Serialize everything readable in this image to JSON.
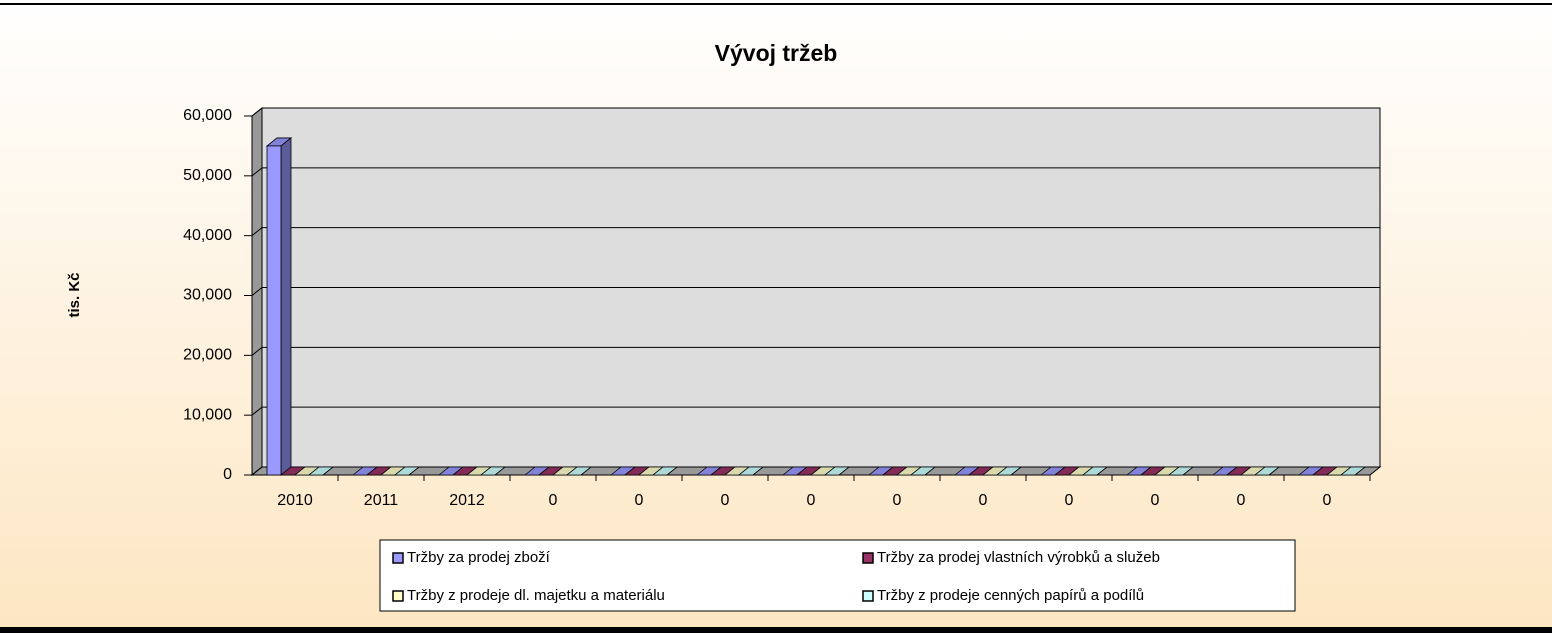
{
  "chart_data": {
    "type": "bar3d",
    "title": "Vývoj tržeb",
    "y_label": "tis. Kč",
    "categories": [
      "2010",
      "2011",
      "2012",
      "0",
      "0",
      "0",
      "0",
      "0",
      "0",
      "0",
      "0",
      "0",
      "0"
    ],
    "series": [
      {
        "name": "Tržby za prodej zboží",
        "color": "#9999ff",
        "values": [
          55000,
          0,
          0,
          0,
          0,
          0,
          0,
          0,
          0,
          0,
          0,
          0,
          0
        ]
      },
      {
        "name": "Tržby za prodej vlastních výrobků a služeb",
        "color": "#993366",
        "values": [
          0,
          0,
          0,
          0,
          0,
          0,
          0,
          0,
          0,
          0,
          0,
          0,
          0
        ]
      },
      {
        "name": "Tržby z prodeje dl. majetku a materiálu",
        "color": "#ffffcc",
        "values": [
          0,
          0,
          0,
          0,
          0,
          0,
          0,
          0,
          0,
          0,
          0,
          0,
          0
        ]
      },
      {
        "name": "Tržby z prodeje cenných papírů a podílů",
        "color": "#ccffff",
        "values": [
          0,
          0,
          0,
          0,
          0,
          0,
          0,
          0,
          0,
          0,
          0,
          0,
          0
        ]
      }
    ],
    "ylim": [
      0,
      60000
    ],
    "yticks": [
      0,
      {
        "value": 10000,
        "label": "10,000"
      },
      {
        "value": 20000,
        "label": "20,000"
      },
      {
        "value": 30000,
        "label": "30,000"
      },
      {
        "value": 40000,
        "label": "40,000"
      },
      {
        "value": 50000,
        "label": "50,000"
      },
      {
        "value": 60000,
        "label": "60,000"
      }
    ],
    "grid": true,
    "legend": "bottom"
  }
}
